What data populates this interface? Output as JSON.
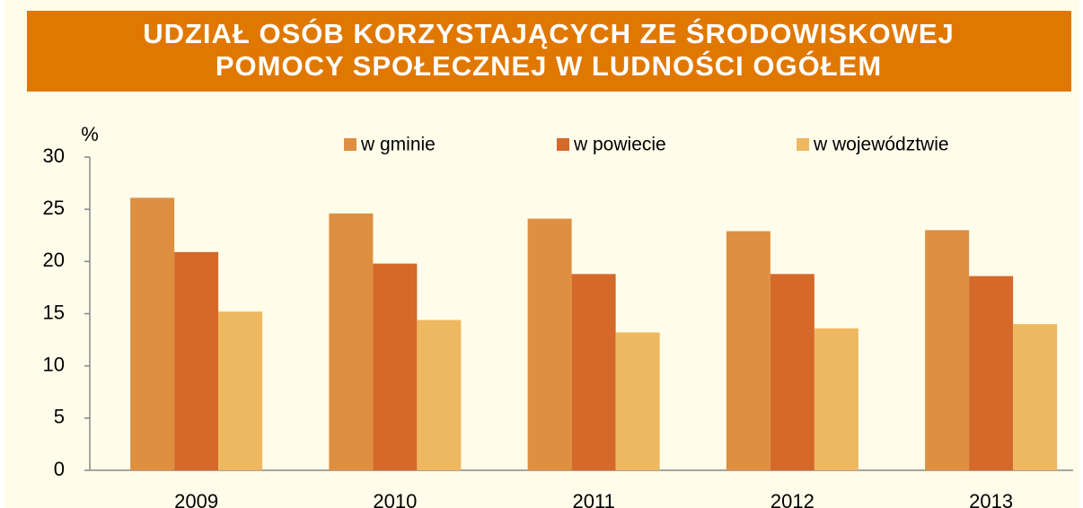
{
  "chart_data": {
    "type": "bar",
    "title": [
      "UDZIAŁ OSÓB KORZYSTAJĄCYCH ZE ŚRODOWISKOWEJ",
      "POMOCY SPOŁECZNEJ W LUDNOŚCI OGÓŁEM"
    ],
    "y_label": "%",
    "categories": [
      "2009",
      "2010",
      "2011",
      "2012",
      "2013"
    ],
    "series": [
      {
        "name": "w gminie",
        "color": "#de8f40",
        "values": [
          26.1,
          24.6,
          24.1,
          22.9,
          23.0
        ]
      },
      {
        "name": "w powiecie",
        "color": "#d4692a",
        "values": [
          20.9,
          19.8,
          18.8,
          18.8,
          18.6
        ]
      },
      {
        "name": "w województwie",
        "color": "#edb860",
        "values": [
          15.2,
          14.4,
          13.2,
          13.6,
          14.0
        ]
      }
    ],
    "ylim": [
      0,
      30
    ],
    "yticks": [
      0,
      5,
      10,
      15,
      20,
      25,
      30
    ],
    "grid": false
  }
}
